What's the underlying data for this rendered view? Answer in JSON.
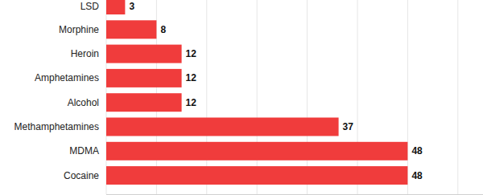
{
  "chart_data": {
    "type": "bar",
    "orientation": "horizontal",
    "categories": [
      "LSD",
      "Morphine",
      "Heroin",
      "Amphetamines",
      "Alcohol",
      "Methamphetamines",
      "MDMA",
      "Cocaine"
    ],
    "values": [
      3,
      8,
      12,
      12,
      12,
      37,
      48,
      48
    ],
    "color": "#f03c3c",
    "xlim": [
      0,
      60
    ],
    "xticks": [
      0,
      8,
      16,
      24,
      32,
      40,
      48,
      56
    ],
    "grid": true,
    "data_labels": true,
    "tick_labels": "y"
  }
}
